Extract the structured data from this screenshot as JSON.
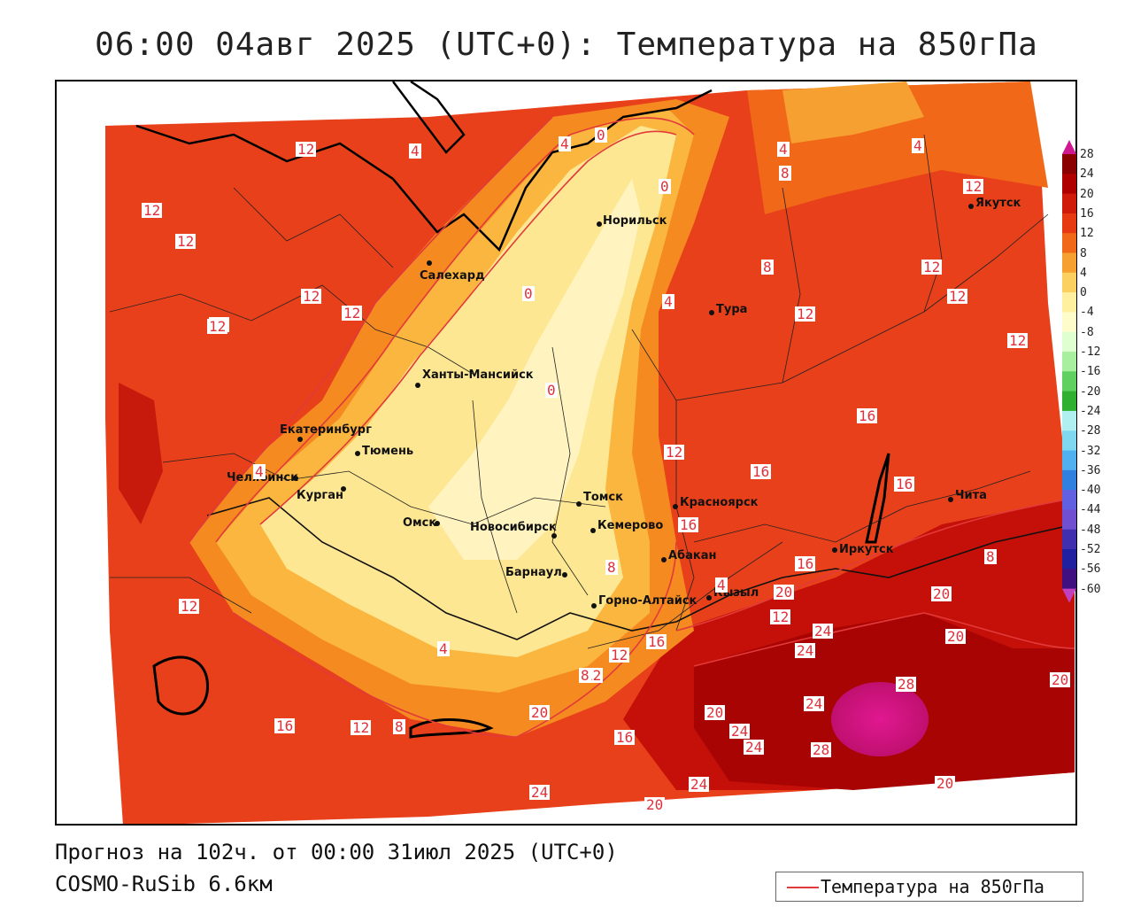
{
  "title": "06:00 04авг 2025 (UTC+0): Температура на 850гПа",
  "footer": {
    "forecast": "Прогноз на 102ч. от 00:00 31июл 2025 (UTC+0)",
    "model": "COSMO-RuSib 6.6км"
  },
  "legend": {
    "line_label": "Температура на 850гПа",
    "line_color": "#e23a3a"
  },
  "colorbar": {
    "ticks": [
      "28",
      "24",
      "20",
      "16",
      "12",
      "8",
      "4",
      "0",
      "-4",
      "-8",
      "-12",
      "-16",
      "-20",
      "-24",
      "-28",
      "-32",
      "-36",
      "-40",
      "-44",
      "-48",
      "-52",
      "-56",
      "-60"
    ],
    "colors": [
      "#d01890",
      "#8b0000",
      "#b00000",
      "#d01a0a",
      "#e83a12",
      "#f06818",
      "#f5a030",
      "#fcd060",
      "#fff0a0",
      "#fffccc",
      "#e0ffd0",
      "#a8f0a0",
      "#60d060",
      "#30b030",
      "#b0f0f0",
      "#80d8f0",
      "#50b0f0",
      "#3080e0",
      "#6060e0",
      "#7050d0",
      "#4030b0",
      "#2020a0",
      "#401080",
      "#c040c0"
    ]
  },
  "cities": [
    {
      "name": "Норильск"
    },
    {
      "name": "Салехард"
    },
    {
      "name": "Тура"
    },
    {
      "name": "Якутск"
    },
    {
      "name": "Ханты-Мансийск"
    },
    {
      "name": "Екатеринбург"
    },
    {
      "name": "Тюмень"
    },
    {
      "name": "Челябинск"
    },
    {
      "name": "Курган"
    },
    {
      "name": "Омск"
    },
    {
      "name": "Новосибирск"
    },
    {
      "name": "Томск"
    },
    {
      "name": "Кемерово"
    },
    {
      "name": "Красноярск"
    },
    {
      "name": "Абакан"
    },
    {
      "name": "Барнаул"
    },
    {
      "name": "Горно-Алтайск"
    },
    {
      "name": "Кызыл"
    },
    {
      "name": "Иркутск"
    },
    {
      "name": "Чита"
    }
  ],
  "contour_labels": [
    "12",
    "4",
    "4",
    "0",
    "0",
    "4",
    "8",
    "12",
    "12",
    "12",
    "12",
    "12",
    "12",
    "12",
    "12",
    "8",
    "0",
    "4",
    "12",
    "12",
    "4",
    "0",
    "12",
    "16",
    "16",
    "16",
    "16",
    "16",
    "8",
    "4",
    "8",
    "12",
    "20",
    "24",
    "20",
    "24",
    "24",
    "20",
    "20",
    "28",
    "24",
    "24",
    "28",
    "20",
    "24",
    "20",
    "20",
    "12",
    "16",
    "12",
    "8",
    "12",
    "16",
    "16",
    "24",
    "20",
    "12",
    "8",
    "4",
    "4",
    "12"
  ]
}
